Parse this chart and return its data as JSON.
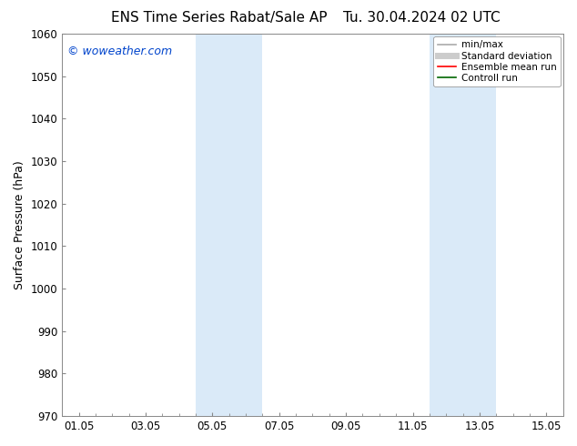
{
  "title_left": "ENS Time Series Rabat/Sale AP",
  "title_right": "Tu. 30.04.2024 02 UTC",
  "ylabel": "Surface Pressure (hPa)",
  "watermark": "© woweather.com",
  "watermark_color": "#0044cc",
  "xlim_start": -0.5,
  "xlim_end": 14.5,
  "ylim_bottom": 970,
  "ylim_top": 1060,
  "yticks": [
    970,
    980,
    990,
    1000,
    1010,
    1020,
    1030,
    1040,
    1050,
    1060
  ],
  "xtick_labels": [
    "01.05",
    "03.05",
    "05.05",
    "07.05",
    "09.05",
    "11.05",
    "13.05",
    "15.05"
  ],
  "xtick_positions": [
    0,
    2,
    4,
    6,
    8,
    10,
    12,
    14
  ],
  "shaded_regions": [
    {
      "x_start": 3.5,
      "x_end": 5.5,
      "color": "#daeaf8"
    },
    {
      "x_start": 10.5,
      "x_end": 12.5,
      "color": "#daeaf8"
    }
  ],
  "legend_entries": [
    {
      "label": "min/max",
      "color": "#aaaaaa",
      "lw": 1.2,
      "style": "-"
    },
    {
      "label": "Standard deviation",
      "color": "#cccccc",
      "lw": 5,
      "style": "-"
    },
    {
      "label": "Ensemble mean run",
      "color": "#ff0000",
      "lw": 1.2,
      "style": "-"
    },
    {
      "label": "Controll run",
      "color": "#006600",
      "lw": 1.2,
      "style": "-"
    }
  ],
  "bg_color": "#ffffff",
  "spine_color": "#888888",
  "title_fontsize": 11,
  "axis_label_fontsize": 9,
  "tick_fontsize": 8.5,
  "watermark_fontsize": 9,
  "legend_fontsize": 7.5
}
